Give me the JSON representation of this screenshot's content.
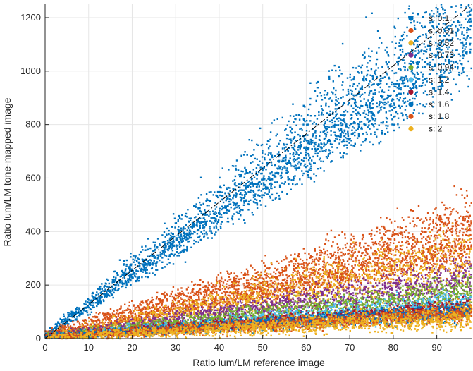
{
  "chart_data": {
    "type": "scatter",
    "title": "",
    "xlabel": "Ratio lum/LM reference image",
    "ylabel": "Ratio lum/LM tone-mapped image",
    "xlim": [
      0,
      98
    ],
    "ylim": [
      0,
      1250
    ],
    "xticks": [
      0,
      10,
      20,
      30,
      40,
      50,
      60,
      70,
      80,
      90
    ],
    "yticks": [
      0,
      200,
      400,
      600,
      800,
      1000,
      1200
    ],
    "grid": true,
    "legend_position": "top-right",
    "reference_line": {
      "style": "dash-dot",
      "color": "#000000",
      "slope": 12.75
    },
    "series": [
      {
        "name": "s: 0.1",
        "color": "#0072BD",
        "bands": [
          {
            "x_start": 0,
            "x_end": 98,
            "y_start": 10,
            "y_end": 1250,
            "spread": 0.1
          },
          {
            "x_start": 0,
            "x_end": 98,
            "y_start": 5,
            "y_end": 1110,
            "spread": 0.07
          }
        ]
      },
      {
        "name": "s: 0.31",
        "color": "#D95319",
        "bands": [
          {
            "x_start": 0,
            "x_end": 98,
            "y_start": 20,
            "y_end": 440,
            "spread": 0.12
          },
          {
            "x_start": 0,
            "x_end": 98,
            "y_start": 5,
            "y_end": 330,
            "spread": 0.1
          }
        ]
      },
      {
        "name": "s: 0.52",
        "color": "#EDB120",
        "bands": [
          {
            "x_start": 0,
            "x_end": 98,
            "y_start": 5,
            "y_end": 290,
            "spread": 0.25
          }
        ]
      },
      {
        "name": "s: 0.73",
        "color": "#7E2F8E",
        "bands": [
          {
            "x_start": 0,
            "x_end": 98,
            "y_start": 5,
            "y_end": 220,
            "spread": 0.18
          }
        ]
      },
      {
        "name": "s: 0.94",
        "color": "#77AC30",
        "bands": [
          {
            "x_start": 0,
            "x_end": 98,
            "y_start": 5,
            "y_end": 175,
            "spread": 0.18
          }
        ]
      },
      {
        "name": "s: 1.2",
        "color": "#4DBEEE",
        "bands": [
          {
            "x_start": 0,
            "x_end": 98,
            "y_start": 5,
            "y_end": 130,
            "spread": 0.18
          }
        ]
      },
      {
        "name": "s: 1.4",
        "color": "#A2142F",
        "bands": [
          {
            "x_start": 0,
            "x_end": 98,
            "y_start": 5,
            "y_end": 115,
            "spread": 0.15
          }
        ]
      },
      {
        "name": "s: 1.6",
        "color": "#0072BD",
        "bands": [
          {
            "x_start": 0,
            "x_end": 98,
            "y_start": 5,
            "y_end": 105,
            "spread": 0.15
          }
        ]
      },
      {
        "name": "s: 1.8",
        "color": "#D95319",
        "bands": [
          {
            "x_start": 0,
            "x_end": 98,
            "y_start": 5,
            "y_end": 95,
            "spread": 0.15
          }
        ]
      },
      {
        "name": "s: 2",
        "color": "#EDB120",
        "bands": [
          {
            "x_start": 0,
            "x_end": 98,
            "y_start": 5,
            "y_end": 80,
            "spread": 0.3
          }
        ]
      }
    ]
  }
}
